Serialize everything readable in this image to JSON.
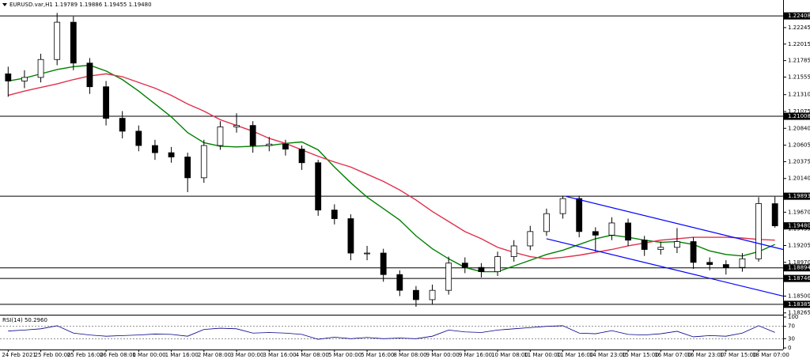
{
  "chart_data": [
    {
      "type": "candlestick",
      "title": "EURUSD.var,H1  1.19789 1.19886 1.19455 1.19480",
      "categories": [
        "24 Feb 2021",
        null,
        "25 Feb 00:00",
        null,
        "25 Feb 16:00",
        null,
        "26 Feb 08:00",
        null,
        "1 Mar 00:00",
        null,
        "1 Mar 16:00",
        null,
        "2 Mar 08:00",
        null,
        "3 Mar 00:00",
        null,
        "3 Mar 16:00",
        null,
        "4 Mar 08:00",
        null,
        "5 Mar 00:00",
        null,
        "5 Mar 16:00",
        null,
        "8 Mar 08:00",
        null,
        "9 Mar 00:00",
        null,
        "9 Mar 16:00",
        null,
        "10 Mar 08:00",
        null,
        "11 Mar 00:00",
        null,
        "11 Mar 16:00",
        null,
        "14 Mar 23:00",
        null,
        "15 Mar 15:00",
        null,
        "16 Mar 07:00",
        null,
        "16 Mar 23:00",
        null,
        "17 Mar 15:00",
        null,
        "18 Mar 07:00",
        null
      ],
      "open": [
        1.216,
        1.215,
        1.2155,
        1.218,
        1.2232,
        1.2175,
        1.2142,
        1.2098,
        1.208,
        1.206,
        1.205,
        1.2044,
        1.2015,
        1.206,
        1.2086,
        1.2088,
        1.206,
        1.2062,
        1.2055,
        1.2036,
        1.197,
        1.1958,
        1.191,
        1.191,
        1.188,
        1.1858,
        1.1845,
        1.1858,
        1.1896,
        1.189,
        1.1884,
        1.1905,
        1.192,
        1.194,
        1.1965,
        1.1986,
        1.194,
        1.1935,
        1.1952,
        1.1928,
        1.1915,
        1.1918,
        1.1926,
        1.1897,
        1.1894,
        1.189,
        1.1902,
        1.19789
      ],
      "high": [
        1.217,
        1.2165,
        1.2188,
        1.2245,
        1.224,
        1.2182,
        1.215,
        1.2108,
        1.2088,
        1.2068,
        1.2058,
        1.205,
        1.2068,
        1.2094,
        1.2105,
        1.2094,
        1.2072,
        1.2068,
        1.206,
        1.204,
        1.1978,
        1.1964,
        1.192,
        1.1916,
        1.1886,
        1.1864,
        1.1866,
        1.1905,
        1.1904,
        1.1896,
        1.1912,
        1.1928,
        1.1948,
        1.1972,
        1.199,
        1.199,
        1.1946,
        1.196,
        1.1958,
        1.1934,
        1.1926,
        1.1945,
        1.1932,
        1.1904,
        1.19,
        1.191,
        1.1988,
        1.19886
      ],
      "low": [
        1.2128,
        1.214,
        1.2148,
        1.2172,
        1.2165,
        1.2132,
        1.2088,
        1.207,
        1.2052,
        1.204,
        1.2036,
        1.1995,
        1.2008,
        1.2054,
        1.2078,
        1.205,
        1.2052,
        1.2046,
        1.2026,
        1.1962,
        1.195,
        1.19,
        1.19,
        1.187,
        1.185,
        1.1835,
        1.1838,
        1.1852,
        1.1882,
        1.1876,
        1.1878,
        1.1898,
        1.1914,
        1.1934,
        1.1958,
        1.1932,
        1.1912,
        1.1928,
        1.192,
        1.1906,
        1.1908,
        1.191,
        1.1888,
        1.1886,
        1.188,
        1.1884,
        1.1898,
        1.19455
      ],
      "close": [
        1.215,
        1.2155,
        1.218,
        1.2232,
        1.2175,
        1.2142,
        1.2098,
        1.208,
        1.206,
        1.205,
        1.2044,
        1.2015,
        1.206,
        1.2086,
        1.2088,
        1.206,
        1.2062,
        1.2055,
        1.2036,
        1.197,
        1.1958,
        1.191,
        1.191,
        1.188,
        1.1858,
        1.1845,
        1.1858,
        1.1896,
        1.189,
        1.1884,
        1.1905,
        1.192,
        1.194,
        1.1965,
        1.1986,
        1.194,
        1.1935,
        1.1952,
        1.1928,
        1.1915,
        1.1918,
        1.1926,
        1.1897,
        1.1894,
        1.189,
        1.1902,
        1.1979,
        1.1948
      ],
      "overlays": [
        {
          "color": "#008000",
          "values": [
            1.215,
            1.2154,
            1.216,
            1.2166,
            1.217,
            1.2172,
            1.2164,
            1.2152,
            1.2136,
            1.2118,
            1.21,
            1.2078,
            1.2064,
            1.2059,
            1.2058,
            1.2059,
            1.206,
            1.2063,
            1.2065,
            1.2054,
            1.203,
            1.2008,
            1.1988,
            1.1972,
            1.1956,
            1.1934,
            1.1916,
            1.1902,
            1.189,
            1.1884,
            1.1884,
            1.1892,
            1.19,
            1.1908,
            1.1914,
            1.1922,
            1.193,
            1.1935,
            1.1932,
            1.1928,
            1.1925,
            1.1926,
            1.1922,
            1.1913,
            1.1908,
            1.1906,
            1.1912,
            1.1922
          ]
        },
        {
          "color": "#e0304c",
          "values": [
            1.213,
            1.2136,
            1.2141,
            1.2146,
            1.2152,
            1.2157,
            1.216,
            1.2156,
            1.2148,
            1.214,
            1.213,
            1.2118,
            1.2108,
            1.2096,
            1.2088,
            1.208,
            1.207,
            1.2063,
            1.2054,
            1.2045,
            1.2037,
            1.203,
            1.202,
            1.201,
            1.1998,
            1.1984,
            1.1968,
            1.1954,
            1.194,
            1.193,
            1.1918,
            1.1911,
            1.1905,
            1.1902,
            1.1904,
            1.1907,
            1.1911,
            1.1915,
            1.192,
            1.1924,
            1.1928,
            1.193,
            1.1932,
            1.1932,
            1.1932,
            1.1931,
            1.1929,
            1.1928
          ]
        }
      ],
      "trendlines": [
        {
          "color": "#0000ff",
          "x": [
            34.2,
            47.5
          ],
          "y": [
            1.1989,
            1.1915
          ]
        },
        {
          "color": "#0000ff",
          "x": [
            33,
            47.5
          ],
          "y": [
            1.193,
            1.185
          ]
        }
      ],
      "levels": [
        1.22408,
        1.21008,
        1.19893,
        1.18894,
        1.18746,
        1.18385
      ],
      "price_label": {
        "value": 1.1948,
        "label": "1.19480"
      },
      "ylim": [
        1.1824,
        1.2263
      ],
      "yticks": [
        1.22245,
        1.22015,
        1.21785,
        1.21555,
        {
          "value": 1.2131,
          "label": "1.21310"
        },
        1.21075,
        {
          "value": 1.2084,
          "label": "1.20840"
        },
        1.20605,
        1.20375,
        {
          "value": 1.2014,
          "label": "1.20140"
        },
        {
          "value": 1.1967,
          "label": "1.19670"
        },
        1.19435,
        1.19205,
        {
          "value": 1.1897,
          "label": "1.18970"
        },
        {
          "value": 1.185,
          "label": "1.18500"
        },
        1.18265
      ]
    },
    {
      "type": "line",
      "title": "RSI(14) 50.2960",
      "color": "#00008b",
      "values": [
        55,
        58,
        62,
        72,
        48,
        42,
        38,
        40,
        42,
        45,
        44,
        38,
        60,
        64,
        62,
        48,
        50,
        48,
        44,
        28,
        35,
        30,
        34,
        30,
        32,
        30,
        38,
        58,
        52,
        50,
        58,
        62,
        66,
        70,
        72,
        48,
        46,
        56,
        44,
        42,
        46,
        54,
        36,
        40,
        38,
        48,
        72,
        50.296
      ],
      "ylim": [
        0,
        100
      ],
      "yticks": [
        100,
        70,
        30,
        0
      ]
    }
  ]
}
